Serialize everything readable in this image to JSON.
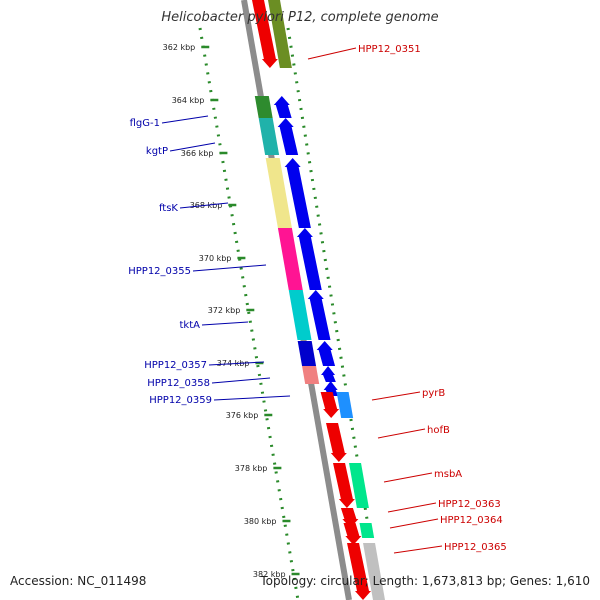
{
  "header": {
    "title": "Helicobacter pylori P12, complete genome"
  },
  "footer": {
    "accession": "Accession: NC_011498",
    "summary": "Topology: circular; Length: 1,673,813 bp; Genes: 1,610"
  },
  "ruler": {
    "unit": "kbp",
    "ticks": [
      {
        "kbp": 362,
        "label": "362 kbp"
      },
      {
        "kbp": 364,
        "label": "364 kbp"
      },
      {
        "kbp": 366,
        "label": "366 kbp"
      },
      {
        "kbp": 368,
        "label": "368 kbp"
      },
      {
        "kbp": 370,
        "label": "370 kbp"
      },
      {
        "kbp": 372,
        "label": "372 kbp"
      },
      {
        "kbp": 374,
        "label": "374 kbp"
      },
      {
        "kbp": 376,
        "label": "376 kbp"
      },
      {
        "kbp": 378,
        "label": "378 kbp"
      },
      {
        "kbp": 380,
        "label": "380 kbp"
      },
      {
        "kbp": 382,
        "label": "382 kbp"
      }
    ]
  },
  "colors": {
    "backbone": "#8c8c8c",
    "dots": "#2a8a2a",
    "plus_label": "#0000aa",
    "minus_label": "#cc0000"
  },
  "genes_plus": [
    {
      "name": "flgG-1",
      "color": "#0000ee",
      "cog_color": "#2e8b2e"
    },
    {
      "name": "kgtP",
      "color": "#0000ee",
      "cog_color": "#20b2aa"
    },
    {
      "name": "ftsK",
      "color": "#0000ee",
      "cog_color": "#f0e68c"
    },
    {
      "name": "HPP12_0355",
      "color": "#0000ee",
      "cog_color": "#ff1493"
    },
    {
      "name": "tktA",
      "color": "#0000ee",
      "cog_color": "#00cccc"
    },
    {
      "name": "HPP12_0357",
      "color": "#0000ee",
      "cog_color": "#0000cc"
    },
    {
      "name": "HPP12_0358",
      "color": "#0000ee",
      "cog_color": "#f08080"
    },
    {
      "name": "HPP12_0359",
      "color": "#0000ee",
      "cog_color": ""
    }
  ],
  "genes_minus": [
    {
      "name": "HPP12_0351",
      "color": "#ee0000",
      "cog_color": "#6b8e23"
    },
    {
      "name": "pyrB",
      "color": "#ee0000",
      "cog_color": "#1e90ff"
    },
    {
      "name": "hofB",
      "color": "#ee0000",
      "cog_color": ""
    },
    {
      "name": "msbA",
      "color": "#ee0000",
      "cog_color": "#00e68c"
    },
    {
      "name": "HPP12_0363",
      "color": "#ee0000",
      "cog_color": ""
    },
    {
      "name": "HPP12_0364",
      "color": "#ee0000",
      "cog_color": "#00e68c"
    },
    {
      "name": "HPP12_0365",
      "color": "#ee0000",
      "cog_color": "#c0c0c0"
    }
  ]
}
